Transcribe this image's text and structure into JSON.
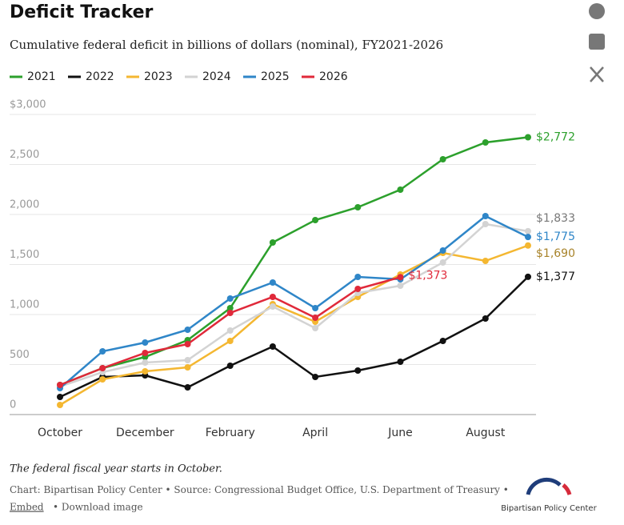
{
  "title": "Deficit Tracker",
  "subtitle": "Cumulative federal deficit in billions of dollars (nominal), FY2021-2026",
  "note": "The federal fiscal year starts in October.",
  "source": "Chart: Bipartisan Policy Center • Source: Congressional Budget Office, U.S. Department of Treasury •",
  "embed": "Embed",
  "download": "• Download image",
  "logo": "Bipartisan Policy Center",
  "chart_data": {
    "type": "line",
    "categories": [
      "October",
      null,
      "December",
      null,
      "February",
      null,
      "April",
      null,
      "June",
      null,
      "August",
      null
    ],
    "ylim": [
      0,
      3000
    ],
    "yticks": [
      0,
      500,
      {
        "value": 1000,
        "label": "1,000"
      },
      {
        "value": 1500,
        "label": "1,500"
      },
      {
        "value": 2000,
        "label": "2,000"
      },
      {
        "value": 2500,
        "label": "2,500"
      },
      {
        "value": 3000,
        "label": "$3,000"
      }
    ],
    "grid": true,
    "legend": "top",
    "series": [
      {
        "name": "2021",
        "color": "#2ca02c",
        "label_color": "#2ca02c",
        "values": [
          296,
          464,
          576,
          744,
          1064,
          1720,
          1944,
          2072,
          2248,
          2552,
          2720,
          2772
        ],
        "value_labels": [
          null,
          null,
          null,
          null,
          null,
          null,
          null,
          null,
          null,
          null,
          null,
          "$2,772"
        ]
      },
      {
        "name": "2022",
        "color": "#111111",
        "label_color": "#111111",
        "values": [
          176,
          376,
          392,
          272,
          488,
          680,
          376,
          440,
          528,
          736,
          960,
          1377
        ],
        "value_labels": [
          null,
          null,
          null,
          null,
          null,
          null,
          null,
          null,
          null,
          null,
          null,
          "$1,377"
        ]
      },
      {
        "name": "2023",
        "color": "#f4b731",
        "label_color": "#a8832a",
        "values": [
          96,
          352,
          432,
          472,
          736,
          1104,
          928,
          1176,
          1400,
          1616,
          1536,
          1690
        ],
        "value_labels": [
          null,
          null,
          null,
          null,
          null,
          null,
          null,
          null,
          null,
          null,
          null,
          "$1,690"
        ]
      },
      {
        "name": "2024",
        "color": "#d3d3d3",
        "label_color": "#777777",
        "values": [
          280,
          424,
          520,
          544,
          840,
          1080,
          864,
          1216,
          1288,
          1520,
          1904,
          1833
        ],
        "value_labels": [
          null,
          null,
          null,
          null,
          null,
          null,
          null,
          null,
          null,
          null,
          null,
          "$1,833"
        ]
      },
      {
        "name": "2025",
        "color": "#2f86c8",
        "label_color": "#2f86c8",
        "values": [
          264,
          632,
          720,
          848,
          1160,
          1320,
          1064,
          1376,
          1352,
          1640,
          1984,
          1775
        ],
        "value_labels": [
          null,
          null,
          null,
          null,
          null,
          null,
          null,
          null,
          null,
          null,
          null,
          "$1,775"
        ]
      },
      {
        "name": "2026",
        "color": "#e0293a",
        "label_color": "#e0293a",
        "values": [
          296,
          464,
          616,
          704,
          1016,
          1176,
          968,
          1256,
          1373,
          null,
          null,
          null
        ],
        "value_labels": [
          null,
          null,
          null,
          null,
          null,
          null,
          null,
          null,
          "$1,373",
          null,
          null,
          null
        ]
      }
    ]
  }
}
